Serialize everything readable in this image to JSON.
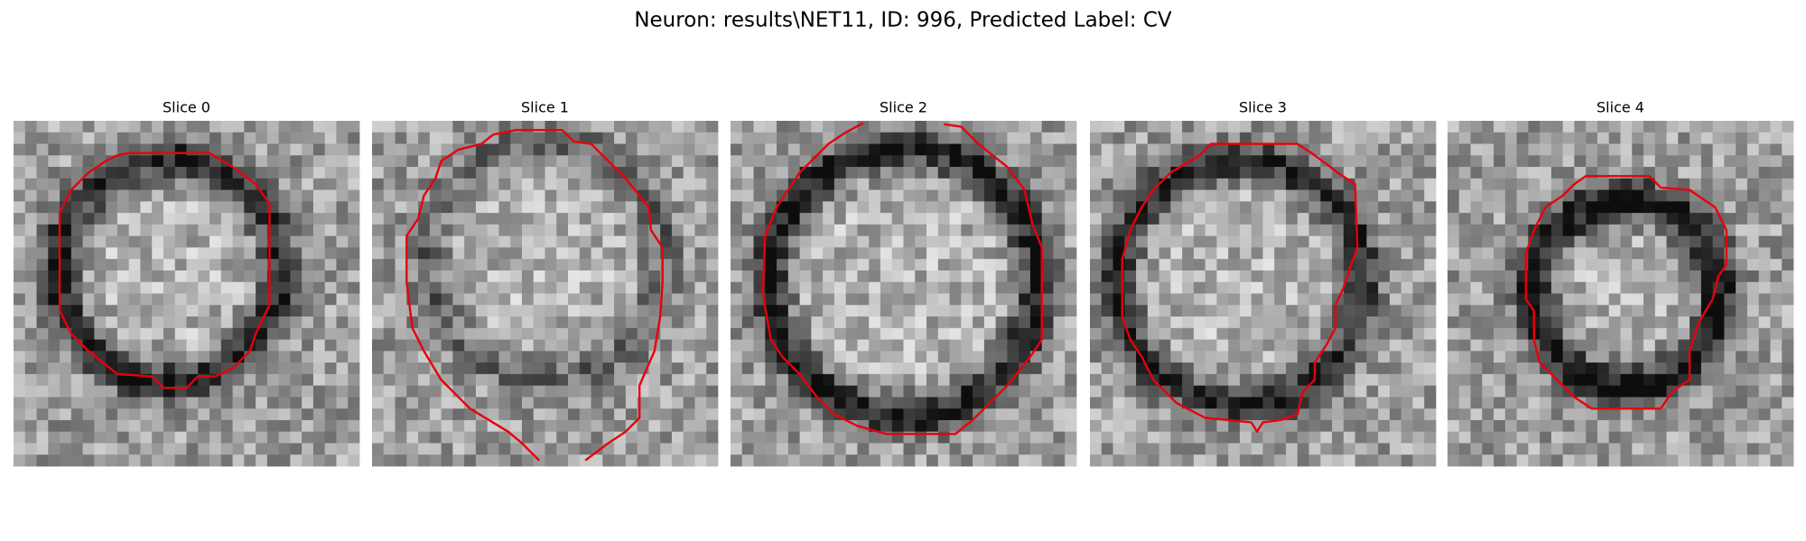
{
  "title": "Neuron: results\\NET11, ID: 996, Predicted Label: CV",
  "panels": [
    {
      "title": "Slice 0"
    },
    {
      "title": "Slice 1"
    },
    {
      "title": "Slice 2"
    },
    {
      "title": "Slice 3"
    },
    {
      "title": "Slice 4"
    }
  ]
}
